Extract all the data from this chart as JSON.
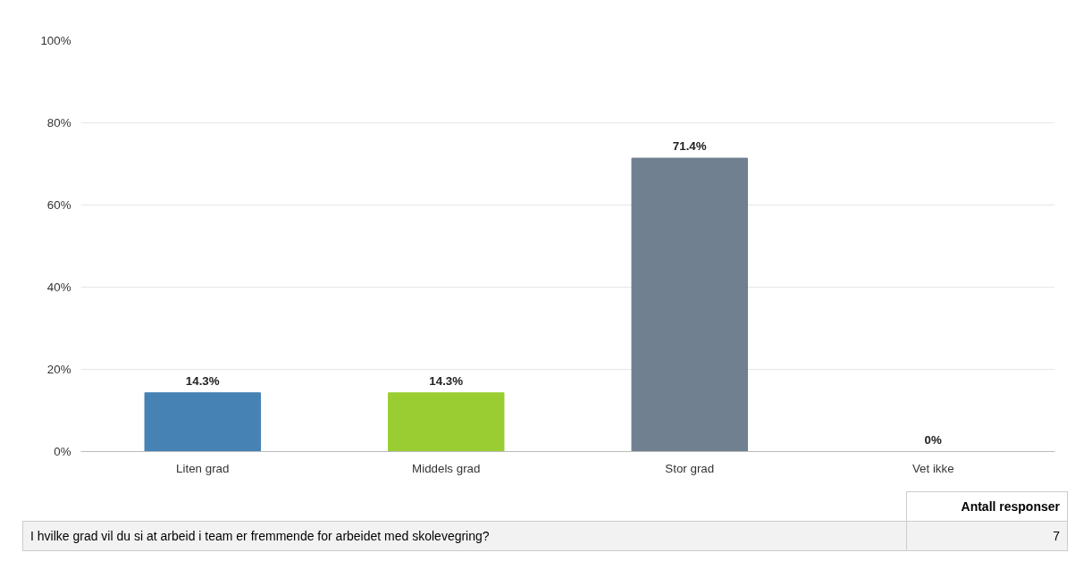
{
  "chart_data": {
    "type": "bar",
    "categories": [
      "Liten grad",
      "Middels grad",
      "Stor grad",
      "Vet ikke"
    ],
    "values": [
      14.3,
      14.3,
      71.4,
      0
    ],
    "colors": [
      "#4682b4",
      "#9acd32",
      "#708090",
      "#708090"
    ],
    "value_labels": [
      "14.3%",
      "14.3%",
      "71.4%",
      "0%"
    ],
    "ylim": [
      0,
      100
    ],
    "yticks": [
      {
        "value": 0,
        "label": "0%"
      },
      {
        "value": 20,
        "label": "20%"
      },
      {
        "value": 40,
        "label": "40%"
      },
      {
        "value": 60,
        "label": "60%"
      },
      {
        "value": 80,
        "label": "80%"
      },
      {
        "value": 100,
        "label": "100%"
      }
    ],
    "grid": "y",
    "annotations": [
      "Antall responser",
      "I hvilke grad vil du si at arbeid i team er fremmende for arbeidet med skolevegring?",
      "7"
    ]
  }
}
